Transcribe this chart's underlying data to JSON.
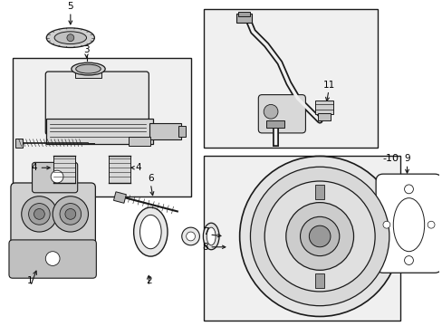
{
  "bg_color": "#ffffff",
  "line_color": "#1a1a1a",
  "label_color": "#000000",
  "fig_w": 4.89,
  "fig_h": 3.6,
  "dpi": 100
}
